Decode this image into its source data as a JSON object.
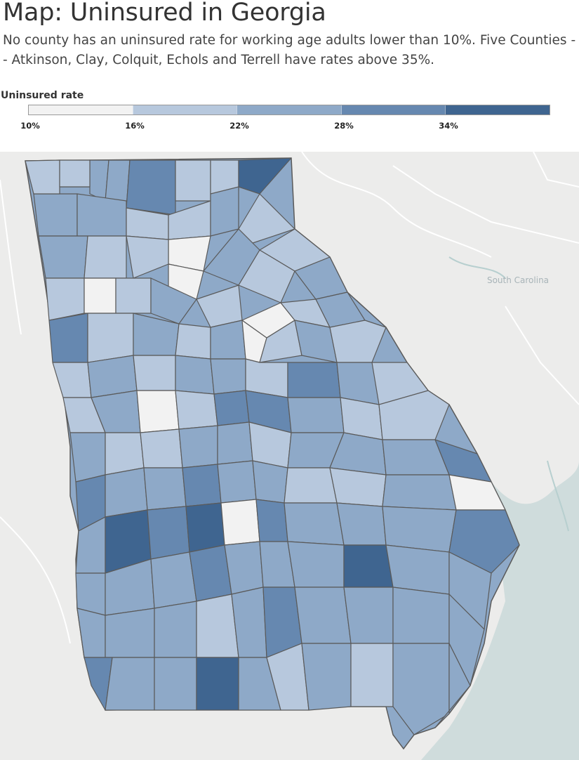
{
  "header": {
    "title": "Map: Uninsured in Georgia",
    "subtitle": "No county has an uninsured rate for working age adults lower than 10%. Five Counties -- Atkinson, Clay, Colquit, Echols and Terrell have rates above 35%."
  },
  "legend": {
    "title": "Uninsured rate",
    "ticks": [
      "10%",
      "16%",
      "22%",
      "28%",
      "34%"
    ],
    "colors": [
      "#f2f2f2",
      "#b7c8dd",
      "#8ea9c8",
      "#6688b0",
      "#3f6590"
    ]
  },
  "map": {
    "state": "Georgia",
    "state_label": "South Carolina",
    "colors": {
      "land": "#ececeb",
      "water": "#cfdcdc",
      "border": "#5a5a5a",
      "road": "#ffffff"
    },
    "counties": [
      {
        "id": "c1",
        "bin": 2
      },
      {
        "id": "c2",
        "bin": 1
      },
      {
        "id": "c3",
        "bin": 2
      },
      {
        "id": "c4",
        "bin": 2
      },
      {
        "id": "c5",
        "bin": 3
      },
      {
        "id": "c6",
        "bin": 1
      },
      {
        "id": "c7",
        "bin": 1
      },
      {
        "id": "c8",
        "bin": 4
      },
      {
        "id": "c9",
        "bin": 2
      },
      {
        "id": "c10",
        "bin": 2
      },
      {
        "id": "c11",
        "bin": 1
      },
      {
        "id": "c12",
        "bin": 1
      },
      {
        "id": "c13",
        "bin": 0
      },
      {
        "id": "c14",
        "bin": 2
      },
      {
        "id": "c15",
        "bin": 1
      },
      {
        "id": "c16",
        "bin": 2
      },
      {
        "id": "c17",
        "bin": 1
      },
      {
        "id": "c18",
        "bin": 1
      },
      {
        "id": "c19",
        "bin": 2
      },
      {
        "id": "c20",
        "bin": 0
      },
      {
        "id": "c21",
        "bin": 1
      },
      {
        "id": "c22",
        "bin": 1
      },
      {
        "id": "c23",
        "bin": 2
      },
      {
        "id": "c24",
        "bin": 1
      },
      {
        "id": "c25",
        "bin": 0
      },
      {
        "id": "c26",
        "bin": 1
      },
      {
        "id": "c27",
        "bin": 2
      },
      {
        "id": "c28",
        "bin": 1
      },
      {
        "id": "c29",
        "bin": 0
      },
      {
        "id": "c30",
        "bin": 1
      },
      {
        "id": "c31",
        "bin": 2
      },
      {
        "id": "c32",
        "bin": 3
      },
      {
        "id": "c33",
        "bin": 1
      },
      {
        "id": "c34",
        "bin": 2
      },
      {
        "id": "c35",
        "bin": 1
      },
      {
        "id": "c36",
        "bin": 2
      },
      {
        "id": "c37",
        "bin": 0
      },
      {
        "id": "c38",
        "bin": 1
      },
      {
        "id": "c39",
        "bin": 2
      },
      {
        "id": "c40",
        "bin": 1
      },
      {
        "id": "c41",
        "bin": 1
      },
      {
        "id": "c42",
        "bin": 2
      },
      {
        "id": "c43",
        "bin": 1
      },
      {
        "id": "c44",
        "bin": 2
      },
      {
        "id": "c45",
        "bin": 2
      },
      {
        "id": "c46",
        "bin": 1
      },
      {
        "id": "c47",
        "bin": 3
      },
      {
        "id": "c48",
        "bin": 2
      },
      {
        "id": "c49",
        "bin": 1
      },
      {
        "id": "c50",
        "bin": 1
      },
      {
        "id": "c51",
        "bin": 2
      },
      {
        "id": "c52",
        "bin": 0
      },
      {
        "id": "c53",
        "bin": 1
      },
      {
        "id": "c54",
        "bin": 3
      },
      {
        "id": "c55",
        "bin": 3
      },
      {
        "id": "c56",
        "bin": 2
      },
      {
        "id": "c57",
        "bin": 1
      },
      {
        "id": "c58",
        "bin": 1
      },
      {
        "id": "c59",
        "bin": 2
      },
      {
        "id": "c60",
        "bin": 1
      },
      {
        "id": "c61",
        "bin": 1
      },
      {
        "id": "c62",
        "bin": 2
      },
      {
        "id": "c63",
        "bin": 2
      },
      {
        "id": "c64",
        "bin": 1
      },
      {
        "id": "c65",
        "bin": 2
      },
      {
        "id": "c66",
        "bin": 2
      },
      {
        "id": "c67",
        "bin": 2
      },
      {
        "id": "c68",
        "bin": 3
      },
      {
        "id": "c69",
        "bin": 3
      },
      {
        "id": "c70",
        "bin": 2
      },
      {
        "id": "c71",
        "bin": 2
      },
      {
        "id": "c72",
        "bin": 3
      },
      {
        "id": "c73",
        "bin": 2
      },
      {
        "id": "c74",
        "bin": 2
      },
      {
        "id": "c75",
        "bin": 1
      },
      {
        "id": "c76",
        "bin": 1
      },
      {
        "id": "c77",
        "bin": 2
      },
      {
        "id": "c78",
        "bin": 0
      },
      {
        "id": "c79",
        "bin": 2
      },
      {
        "id": "c80",
        "bin": 4
      },
      {
        "id": "c81",
        "bin": 3
      },
      {
        "id": "c82",
        "bin": 4
      },
      {
        "id": "c83",
        "bin": 0
      },
      {
        "id": "c84",
        "bin": 3
      },
      {
        "id": "c85",
        "bin": 2
      },
      {
        "id": "c86",
        "bin": 2
      },
      {
        "id": "c87",
        "bin": 2
      },
      {
        "id": "c88",
        "bin": 3
      },
      {
        "id": "c89",
        "bin": 2
      },
      {
        "id": "c90",
        "bin": 2
      },
      {
        "id": "c91",
        "bin": 2
      },
      {
        "id": "c92",
        "bin": 3
      },
      {
        "id": "c93",
        "bin": 2
      },
      {
        "id": "c94",
        "bin": 2
      },
      {
        "id": "c95",
        "bin": 2
      },
      {
        "id": "c96",
        "bin": 4
      },
      {
        "id": "c97",
        "bin": 2
      },
      {
        "id": "c98",
        "bin": 2
      },
      {
        "id": "c99",
        "bin": 2
      },
      {
        "id": "c100",
        "bin": 2
      },
      {
        "id": "c101",
        "bin": 2
      },
      {
        "id": "c102",
        "bin": 1
      },
      {
        "id": "c103",
        "bin": 2
      },
      {
        "id": "c104",
        "bin": 3
      },
      {
        "id": "c105",
        "bin": 2
      },
      {
        "id": "c106",
        "bin": 2
      },
      {
        "id": "c107",
        "bin": 2
      },
      {
        "id": "c108",
        "bin": 2
      },
      {
        "id": "c109",
        "bin": 3
      },
      {
        "id": "c110",
        "bin": 2
      },
      {
        "id": "c111",
        "bin": 2
      },
      {
        "id": "c112",
        "bin": 4
      },
      {
        "id": "c113",
        "bin": 2
      },
      {
        "id": "c114",
        "bin": 1
      },
      {
        "id": "c115",
        "bin": 2
      },
      {
        "id": "c116",
        "bin": 1
      },
      {
        "id": "c117",
        "bin": 2
      },
      {
        "id": "c118",
        "bin": 2
      },
      {
        "id": "c119",
        "bin": 1
      },
      {
        "id": "c120",
        "bin": 1
      }
    ]
  }
}
